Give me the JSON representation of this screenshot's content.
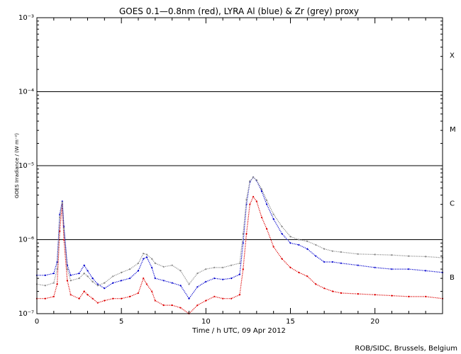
{
  "chart_data": {
    "type": "scatter",
    "title": "GOES 0.1—0.8nm (red), LYRA Al (blue) & Zr (grey) proxy",
    "xlabel": "Time / h UTC, 09 Apr 2012",
    "ylabel": "GOES Irradiance / (W m⁻²)",
    "credit": "ROB/SIDC, Brussels, Belgium",
    "xlim": [
      0,
      24
    ],
    "ylim": [
      1e-07,
      0.001
    ],
    "yscale": "log",
    "x_ticks": [
      {
        "value": 0,
        "label": "0"
      },
      {
        "value": 5,
        "label": "5"
      },
      {
        "value": 10,
        "label": "10"
      },
      {
        "value": 15,
        "label": "15"
      },
      {
        "value": 20,
        "label": "20"
      }
    ],
    "y_ticks": [
      {
        "value": 1e-07,
        "label": "10⁻⁷"
      },
      {
        "value": 1e-06,
        "label": "10⁻⁶"
      },
      {
        "value": 1e-05,
        "label": "10⁻⁵"
      },
      {
        "value": 0.0001,
        "label": "10⁻⁴"
      },
      {
        "value": 0.001,
        "label": "10⁻³"
      }
    ],
    "class_levels": [
      {
        "label": "B",
        "value": 3.16e-07
      },
      {
        "label": "C",
        "value": 3.16e-06
      },
      {
        "label": "M",
        "value": 3.16e-05
      },
      {
        "label": "X",
        "value": 0.000316
      }
    ],
    "threshold_lines": [
      1e-06,
      1e-05,
      0.0001
    ],
    "grid": false,
    "legend": "none",
    "series": [
      {
        "color": "#dd0000",
        "x": [
          0.0,
          0.5,
          1.0,
          1.2,
          1.35,
          1.5,
          1.6,
          1.8,
          2.0,
          2.5,
          2.8,
          3.0,
          3.3,
          3.6,
          4.0,
          4.5,
          5.0,
          5.5,
          6.0,
          6.3,
          6.5,
          6.8,
          7.0,
          7.5,
          8.0,
          8.5,
          9.0,
          9.5,
          10.0,
          10.5,
          11.0,
          11.5,
          12.0,
          12.2,
          12.4,
          12.6,
          12.8,
          13.0,
          13.3,
          13.6,
          14.0,
          14.5,
          15.0,
          15.5,
          16.0,
          16.5,
          17.0,
          17.5,
          18.0,
          19.0,
          20.0,
          21.0,
          22.0,
          23.0,
          24.0
        ],
        "y": [
          1.6e-07,
          1.6e-07,
          1.7e-07,
          2.5e-07,
          1.3e-06,
          3e-06,
          1e-06,
          2.8e-07,
          1.8e-07,
          1.6e-07,
          2e-07,
          1.8e-07,
          1.6e-07,
          1.4e-07,
          1.5e-07,
          1.6e-07,
          1.6e-07,
          1.7e-07,
          1.9e-07,
          3e-07,
          2.5e-07,
          2e-07,
          1.5e-07,
          1.3e-07,
          1.3e-07,
          1.2e-07,
          1e-07,
          1.3e-07,
          1.5e-07,
          1.7e-07,
          1.6e-07,
          1.6e-07,
          1.8e-07,
          4e-07,
          1.2e-06,
          3e-06,
          3.8e-06,
          3.3e-06,
          2e-06,
          1.4e-06,
          8e-07,
          5.5e-07,
          4.2e-07,
          3.6e-07,
          3.2e-07,
          2.5e-07,
          2.2e-07,
          2e-07,
          1.9e-07,
          1.85e-07,
          1.8e-07,
          1.75e-07,
          1.7e-07,
          1.7e-07,
          1.6e-07
        ]
      },
      {
        "color": "#0000cc",
        "x": [
          0.0,
          0.5,
          1.0,
          1.2,
          1.35,
          1.5,
          1.6,
          1.8,
          2.0,
          2.5,
          2.8,
          3.0,
          3.3,
          3.6,
          4.0,
          4.5,
          5.0,
          5.5,
          6.0,
          6.3,
          6.5,
          6.8,
          7.0,
          7.5,
          8.0,
          8.5,
          9.0,
          9.5,
          10.0,
          10.5,
          11.0,
          11.5,
          12.0,
          12.2,
          12.4,
          12.6,
          12.8,
          13.0,
          13.3,
          13.6,
          14.0,
          14.5,
          15.0,
          15.5,
          16.0,
          16.5,
          17.0,
          17.5,
          18.0,
          19.0,
          20.0,
          21.0,
          22.0,
          23.0,
          24.0
        ],
        "y": [
          3.3e-07,
          3.3e-07,
          3.5e-07,
          5e-07,
          2.2e-06,
          3.3e-06,
          1.5e-06,
          4.5e-07,
          3.3e-07,
          3.5e-07,
          4.5e-07,
          3.8e-07,
          3e-07,
          2.5e-07,
          2.2e-07,
          2.6e-07,
          2.8e-07,
          3e-07,
          3.8e-07,
          5.5e-07,
          5.8e-07,
          4.2e-07,
          3e-07,
          2.8e-07,
          2.6e-07,
          2.4e-07,
          1.6e-07,
          2.3e-07,
          2.7e-07,
          3e-07,
          2.9e-07,
          3e-07,
          3.4e-07,
          9e-07,
          3e-06,
          6e-06,
          7e-06,
          6.3e-06,
          4.5e-06,
          3e-06,
          1.9e-06,
          1.2e-06,
          9e-07,
          8.5e-07,
          7.5e-07,
          6e-07,
          5e-07,
          5e-07,
          4.8e-07,
          4.5e-07,
          4.2e-07,
          4e-07,
          4e-07,
          3.8e-07,
          3.6e-07
        ]
      },
      {
        "color": "#888888",
        "x": [
          0.0,
          0.5,
          1.0,
          1.2,
          1.35,
          1.5,
          1.6,
          1.8,
          2.0,
          2.5,
          2.8,
          3.0,
          3.3,
          3.6,
          4.0,
          4.5,
          5.0,
          5.5,
          6.0,
          6.3,
          6.5,
          6.8,
          7.0,
          7.5,
          8.0,
          8.5,
          9.0,
          9.5,
          10.0,
          10.5,
          11.0,
          11.5,
          12.0,
          12.2,
          12.4,
          12.6,
          12.8,
          13.0,
          13.3,
          13.6,
          14.0,
          14.5,
          15.0,
          15.5,
          16.0,
          16.5,
          17.0,
          17.5,
          18.0,
          19.0,
          20.0,
          21.0,
          22.0,
          23.0,
          24.0
        ],
        "y": [
          2.5e-07,
          2.4e-07,
          2.6e-07,
          4e-07,
          2e-06,
          3.2e-06,
          1.4e-06,
          4e-07,
          2.8e-07,
          3e-07,
          3.5e-07,
          3.2e-07,
          2.7e-07,
          2.4e-07,
          2.6e-07,
          3.2e-07,
          3.6e-07,
          4e-07,
          4.8e-07,
          6.5e-07,
          6.3e-07,
          5.5e-07,
          4.8e-07,
          4.3e-07,
          4.5e-07,
          3.8e-07,
          2.5e-07,
          3.5e-07,
          4e-07,
          4.2e-07,
          4.2e-07,
          4.5e-07,
          4.8e-07,
          1.2e-06,
          3.5e-06,
          6.2e-06,
          7e-06,
          6.4e-06,
          4.8e-06,
          3.4e-06,
          2.2e-06,
          1.5e-06,
          1.1e-06,
          1e-06,
          9.5e-07,
          8.5e-07,
          7.5e-07,
          7e-07,
          6.8e-07,
          6.4e-07,
          6.3e-07,
          6.2e-07,
          6e-07,
          5.9e-07,
          5.7e-07
        ]
      }
    ]
  }
}
